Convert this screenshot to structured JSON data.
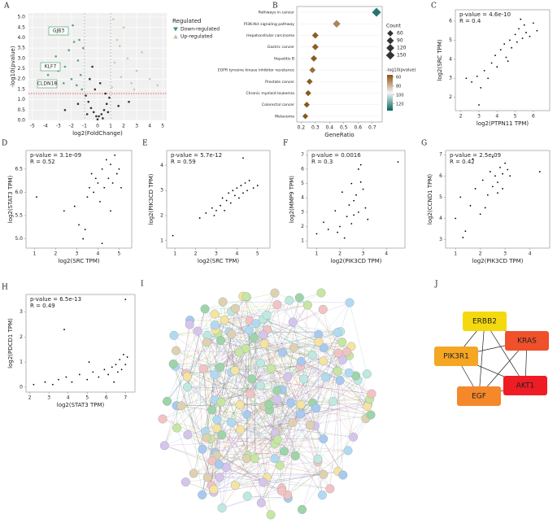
{
  "chart_data": [
    {
      "panel": "A",
      "type": "volcano",
      "xlabel": "log2(FoldChange)",
      "ylabel": "-log10(pvalue)",
      "xlim": [
        -5.3,
        5.3
      ],
      "xticks": [
        -5,
        -4,
        -3,
        -2,
        -1,
        0,
        1,
        2,
        3,
        4,
        5
      ],
      "ylim": [
        0,
        5.2
      ],
      "yticks": [
        {
          "value": 0,
          "label": "0.0"
        },
        0.5,
        {
          "value": 1,
          "label": "1.0"
        },
        1.5,
        {
          "value": 2,
          "label": "2.0"
        },
        2.5,
        {
          "value": 3,
          "label": "3.0"
        },
        3.5,
        {
          "value": 4,
          "label": "4.0"
        },
        4.5,
        {
          "value": 5,
          "label": "5.0"
        }
      ],
      "grid": true,
      "vlines": [
        -1,
        1
      ],
      "hline": 1.3,
      "legend_title": "Regulated",
      "annotations": [
        "GJB3",
        "KLF7",
        "CLDN18"
      ],
      "series": [
        {
          "name": "Down-regulated",
          "color": "#3a9a5f",
          "x": [
            -3.8,
            -3.2,
            -2.8,
            -2.5,
            -2.2,
            -2.0,
            -1.8,
            -1.6,
            -1.5,
            -1.3,
            -1.2,
            -1.1,
            -2.6,
            -1.9,
            -3.0,
            -1.4
          ],
          "values": [
            2.2,
            3.1,
            4.2,
            2.6,
            3.4,
            2.0,
            3.8,
            1.7,
            2.9,
            2.2,
            1.5,
            3.5,
            1.8,
            4.6,
            2.4,
            3.9
          ]
        },
        {
          "name": "Up-regulated",
          "color": "#cdbf9f",
          "x": [
            1.1,
            1.3,
            1.5,
            1.8,
            2.0,
            2.3,
            2.6,
            3.0,
            3.4,
            4.0,
            4.6,
            1.2,
            1.7,
            2.8
          ],
          "values": [
            1.6,
            2.8,
            3.9,
            2.1,
            4.5,
            3.0,
            1.8,
            2.4,
            3.3,
            2.0,
            1.7,
            4.9,
            3.6,
            1.5
          ]
        },
        {
          "color": "#111111",
          "x": [
            -0.9,
            -0.7,
            -0.5,
            -0.3,
            -0.1,
            0.1,
            0.3,
            0.5,
            0.7,
            0.9,
            -0.6,
            -0.2,
            0.2,
            0.6,
            -0.8,
            0.8,
            -0.4,
            0.4,
            0,
            -1.5,
            1.6,
            -2.5,
            2.4
          ],
          "values": [
            1.2,
            0.9,
            0.6,
            0.4,
            0.2,
            0.2,
            0.3,
            0.5,
            0.8,
            1.1,
            2.0,
            1.5,
            1.8,
            1.3,
            0.3,
            0.4,
            2.6,
            0.1,
            0.05,
            0.8,
            0.7,
            0.5,
            0.9
          ]
        }
      ]
    },
    {
      "panel": "B",
      "type": "dot",
      "xlabel": "GeneRatio",
      "categories": [
        "Pathways in cancer",
        "PI3K-Akt signaling pathway",
        "Hepatocellular carcinoma",
        "Gastric cancer",
        "Hepatitis B",
        "EGFR tyrosine kinase inhibitor resistance",
        "Prostate cancer",
        "Chronic myeloid leukemia",
        "Colorectal cancer",
        "Melanoma"
      ],
      "values": [
        0.73,
        0.45,
        0.3,
        0.3,
        0.29,
        0.28,
        0.26,
        0.25,
        0.24,
        0.23
      ],
      "sizes": [
        150,
        90,
        62,
        60,
        58,
        50,
        50,
        45,
        45,
        40
      ],
      "color_values": [
        130,
        68,
        58,
        58,
        57,
        62,
        58,
        56,
        57,
        56
      ],
      "xlim": [
        0.17,
        0.77
      ],
      "xticks": [
        0.2,
        0.3,
        0.4,
        0.5,
        0.6,
        0.7
      ],
      "size_title": "Count",
      "size_ticks": [
        60,
        90,
        120,
        150
      ],
      "color_title": "-log10(pvalue)",
      "clim": [
        55,
        135
      ],
      "cticks": [
        60,
        80,
        100,
        120
      ],
      "colors": [
        "#8c510a",
        "#f5f5f5",
        "#01665e"
      ]
    },
    {
      "panel": "C",
      "type": "scatter",
      "xlabel": "log2(PTPN11 TPM)",
      "ylabel": "log2(SRC TPM)",
      "annotations": [
        "p-value = 4.6e-10",
        "R = 0.4"
      ],
      "color": "#000000",
      "xlim": [
        1.7,
        6.9
      ],
      "xticks": [
        2,
        3,
        4,
        5,
        6
      ],
      "ylim": [
        1.3,
        6.6
      ],
      "yticks": [
        2,
        3,
        4,
        5,
        6
      ],
      "x": [
        2.3,
        2.6,
        2.9,
        3.1,
        3.3,
        3.5,
        3.7,
        3.9,
        4.0,
        4.2,
        4.4,
        4.5,
        4.7,
        4.8,
        5.0,
        5.1,
        5.2,
        5.4,
        5.5,
        5.6,
        5.8,
        6.0,
        6.2,
        3.0,
        4.6,
        5.3
      ],
      "values": [
        3.0,
        2.8,
        3.1,
        2.5,
        3.4,
        3.0,
        3.8,
        4.2,
        3.6,
        4.5,
        4.8,
        4.1,
        5.0,
        4.6,
        5.3,
        4.9,
        5.6,
        5.1,
        5.8,
        5.4,
        5.2,
        5.9,
        5.5,
        1.6,
        3.9,
        6.1
      ]
    },
    {
      "panel": "D",
      "type": "scatter",
      "xlabel": "log2(SRC TPM)",
      "ylabel": "log2(STAT3 TPM)",
      "annotations": [
        "p-value = 3.1e-09",
        "R = 0.52"
      ],
      "color": "#000000",
      "xlim": [
        0.6,
        5.6
      ],
      "xticks": [
        1,
        2,
        3,
        4,
        5
      ],
      "ylim": [
        4.8,
        6.9
      ],
      "yticks": [
        {
          "value": 5,
          "label": "5.0"
        },
        5.5,
        {
          "value": 6,
          "label": "6.0"
        },
        6.5
      ],
      "x": [
        1.1,
        2.9,
        3.1,
        3.3,
        3.5,
        3.6,
        3.8,
        3.9,
        4.0,
        4.1,
        4.2,
        4.3,
        4.4,
        4.5,
        4.6,
        4.7,
        4.8,
        4.9,
        5.0,
        3.4,
        4.2,
        2.4,
        3.7,
        4.6,
        5.1
      ],
      "values": [
        5.9,
        5.7,
        5.3,
        5.0,
        5.9,
        6.1,
        6.0,
        6.3,
        6.2,
        5.8,
        6.5,
        6.1,
        6.7,
        6.3,
        6.6,
        6.2,
        6.8,
        6.4,
        6.5,
        5.2,
        4.9,
        5.6,
        6.4,
        5.6,
        6.1
      ]
    },
    {
      "panel": "E",
      "type": "scatter",
      "xlabel": "log2(SRC TPM)",
      "ylabel": "log2(PIK3CD TPM)",
      "annotations": [
        "p-value = 5.7e-12",
        "R = 0.59"
      ],
      "color": "#000000",
      "xlim": [
        0.6,
        5.6
      ],
      "xticks": [
        1,
        2,
        3,
        4,
        5
      ],
      "ylim": [
        0.7,
        4.6
      ],
      "yticks": [
        1,
        2,
        3,
        4
      ],
      "x": [
        0.9,
        2.2,
        2.5,
        2.8,
        3.0,
        3.2,
        3.3,
        3.5,
        3.6,
        3.7,
        3.8,
        3.9,
        4.0,
        4.1,
        4.2,
        4.3,
        4.4,
        4.5,
        4.6,
        4.8,
        5.0,
        4.3,
        3.4,
        2.9
      ],
      "values": [
        1.2,
        1.9,
        2.1,
        2.3,
        2.2,
        2.4,
        2.7,
        2.6,
        2.9,
        2.5,
        3.0,
        2.8,
        3.1,
        2.7,
        3.2,
        2.9,
        3.3,
        3.0,
        3.4,
        3.1,
        3.2,
        4.3,
        2.2,
        2.0
      ]
    },
    {
      "panel": "F",
      "type": "scatter",
      "xlabel": "log2(PIK3CD TPM)",
      "ylabel": "log2(MMP9 TPM)",
      "annotations": [
        "p-value = 0.0016",
        "R = 0.3"
      ],
      "color": "#000000",
      "xlim": [
        0.6,
        4.8
      ],
      "xticks": [
        1,
        2,
        3,
        4
      ],
      "ylim": [
        0.5,
        7.3
      ],
      "yticks": [
        1,
        2,
        3,
        4,
        5,
        6,
        7
      ],
      "x": [
        1.0,
        1.3,
        1.5,
        1.8,
        2.0,
        2.1,
        2.3,
        2.4,
        2.5,
        2.6,
        2.7,
        2.8,
        2.9,
        3.0,
        3.1,
        2.2,
        2.6,
        2.9,
        3.2,
        4.5,
        1.9,
        2.8,
        2.5
      ],
      "values": [
        1.5,
        2.3,
        1.8,
        3.1,
        2.0,
        4.4,
        2.7,
        3.5,
        2.2,
        3.8,
        4.2,
        3.0,
        5.1,
        4.6,
        3.3,
        1.2,
        2.8,
        6.3,
        2.5,
        6.5,
        1.6,
        6.0,
        5.0
      ]
    },
    {
      "panel": "G",
      "type": "scatter",
      "xlabel": "log2(PIK3CD TPM)",
      "ylabel": "log2(CCND1 TPM)",
      "annotations": [
        "p-value = 2.5e-09",
        "R = 0.42"
      ],
      "color": "#000000",
      "xlim": [
        0.6,
        4.8
      ],
      "xticks": [
        1,
        2,
        3,
        4
      ],
      "ylim": [
        2.6,
        7.2
      ],
      "yticks": [
        3,
        4,
        5,
        6,
        7
      ],
      "x": [
        1.0,
        1.2,
        1.4,
        1.6,
        1.8,
        2.0,
        2.1,
        2.3,
        2.4,
        2.5,
        2.6,
        2.7,
        2.8,
        2.9,
        3.0,
        3.1,
        1.3,
        2.2,
        2.7,
        3.2,
        1.7,
        2.5,
        2.9,
        4.4
      ],
      "values": [
        4.0,
        5.0,
        3.4,
        4.6,
        5.4,
        4.2,
        5.8,
        5.1,
        6.2,
        5.5,
        6.0,
        5.7,
        6.4,
        6.1,
        6.6,
        6.3,
        3.1,
        4.5,
        5.2,
        6.0,
        6.8,
        6.9,
        5.4,
        6.2
      ]
    },
    {
      "panel": "H",
      "type": "scatter",
      "xlabel": "log2(STAT3 TPM)",
      "ylabel": "log2(PDCD1 TPM)",
      "annotations": [
        "p-value = 6.5e-13",
        "R = 0.49"
      ],
      "color": "#000000",
      "xlim": [
        1.8,
        7.5
      ],
      "xticks": [
        2,
        3,
        4,
        5,
        6,
        7
      ],
      "ylim": [
        -0.2,
        3.7
      ],
      "yticks": [
        0,
        1,
        2,
        3
      ],
      "x": [
        2.2,
        2.8,
        3.2,
        3.5,
        3.9,
        4.2,
        4.6,
        5.0,
        5.3,
        5.6,
        5.9,
        6.1,
        6.3,
        6.5,
        6.6,
        6.7,
        6.8,
        6.9,
        7.0,
        7.1,
        3.8,
        7.0,
        5.1,
        6.4
      ],
      "values": [
        0.1,
        0.2,
        0.1,
        0.3,
        0.4,
        0.2,
        0.5,
        0.3,
        0.6,
        0.4,
        0.7,
        0.5,
        0.8,
        0.9,
        0.6,
        1.1,
        0.7,
        1.3,
        0.9,
        1.2,
        2.3,
        3.5,
        1.0,
        0.2
      ]
    }
  ],
  "network_i": {
    "panel": "I"
  },
  "network_j": {
    "panel": "J",
    "nodes": [
      {
        "label": "ERBB2",
        "color": "#f5d90f"
      },
      {
        "label": "KRAS",
        "color": "#f0502a"
      },
      {
        "label": "PIK3R1",
        "color": "#f5a623"
      },
      {
        "label": "EGF",
        "color": "#f5882a"
      },
      {
        "label": "AKT1",
        "color": "#ee1c25"
      }
    ]
  }
}
